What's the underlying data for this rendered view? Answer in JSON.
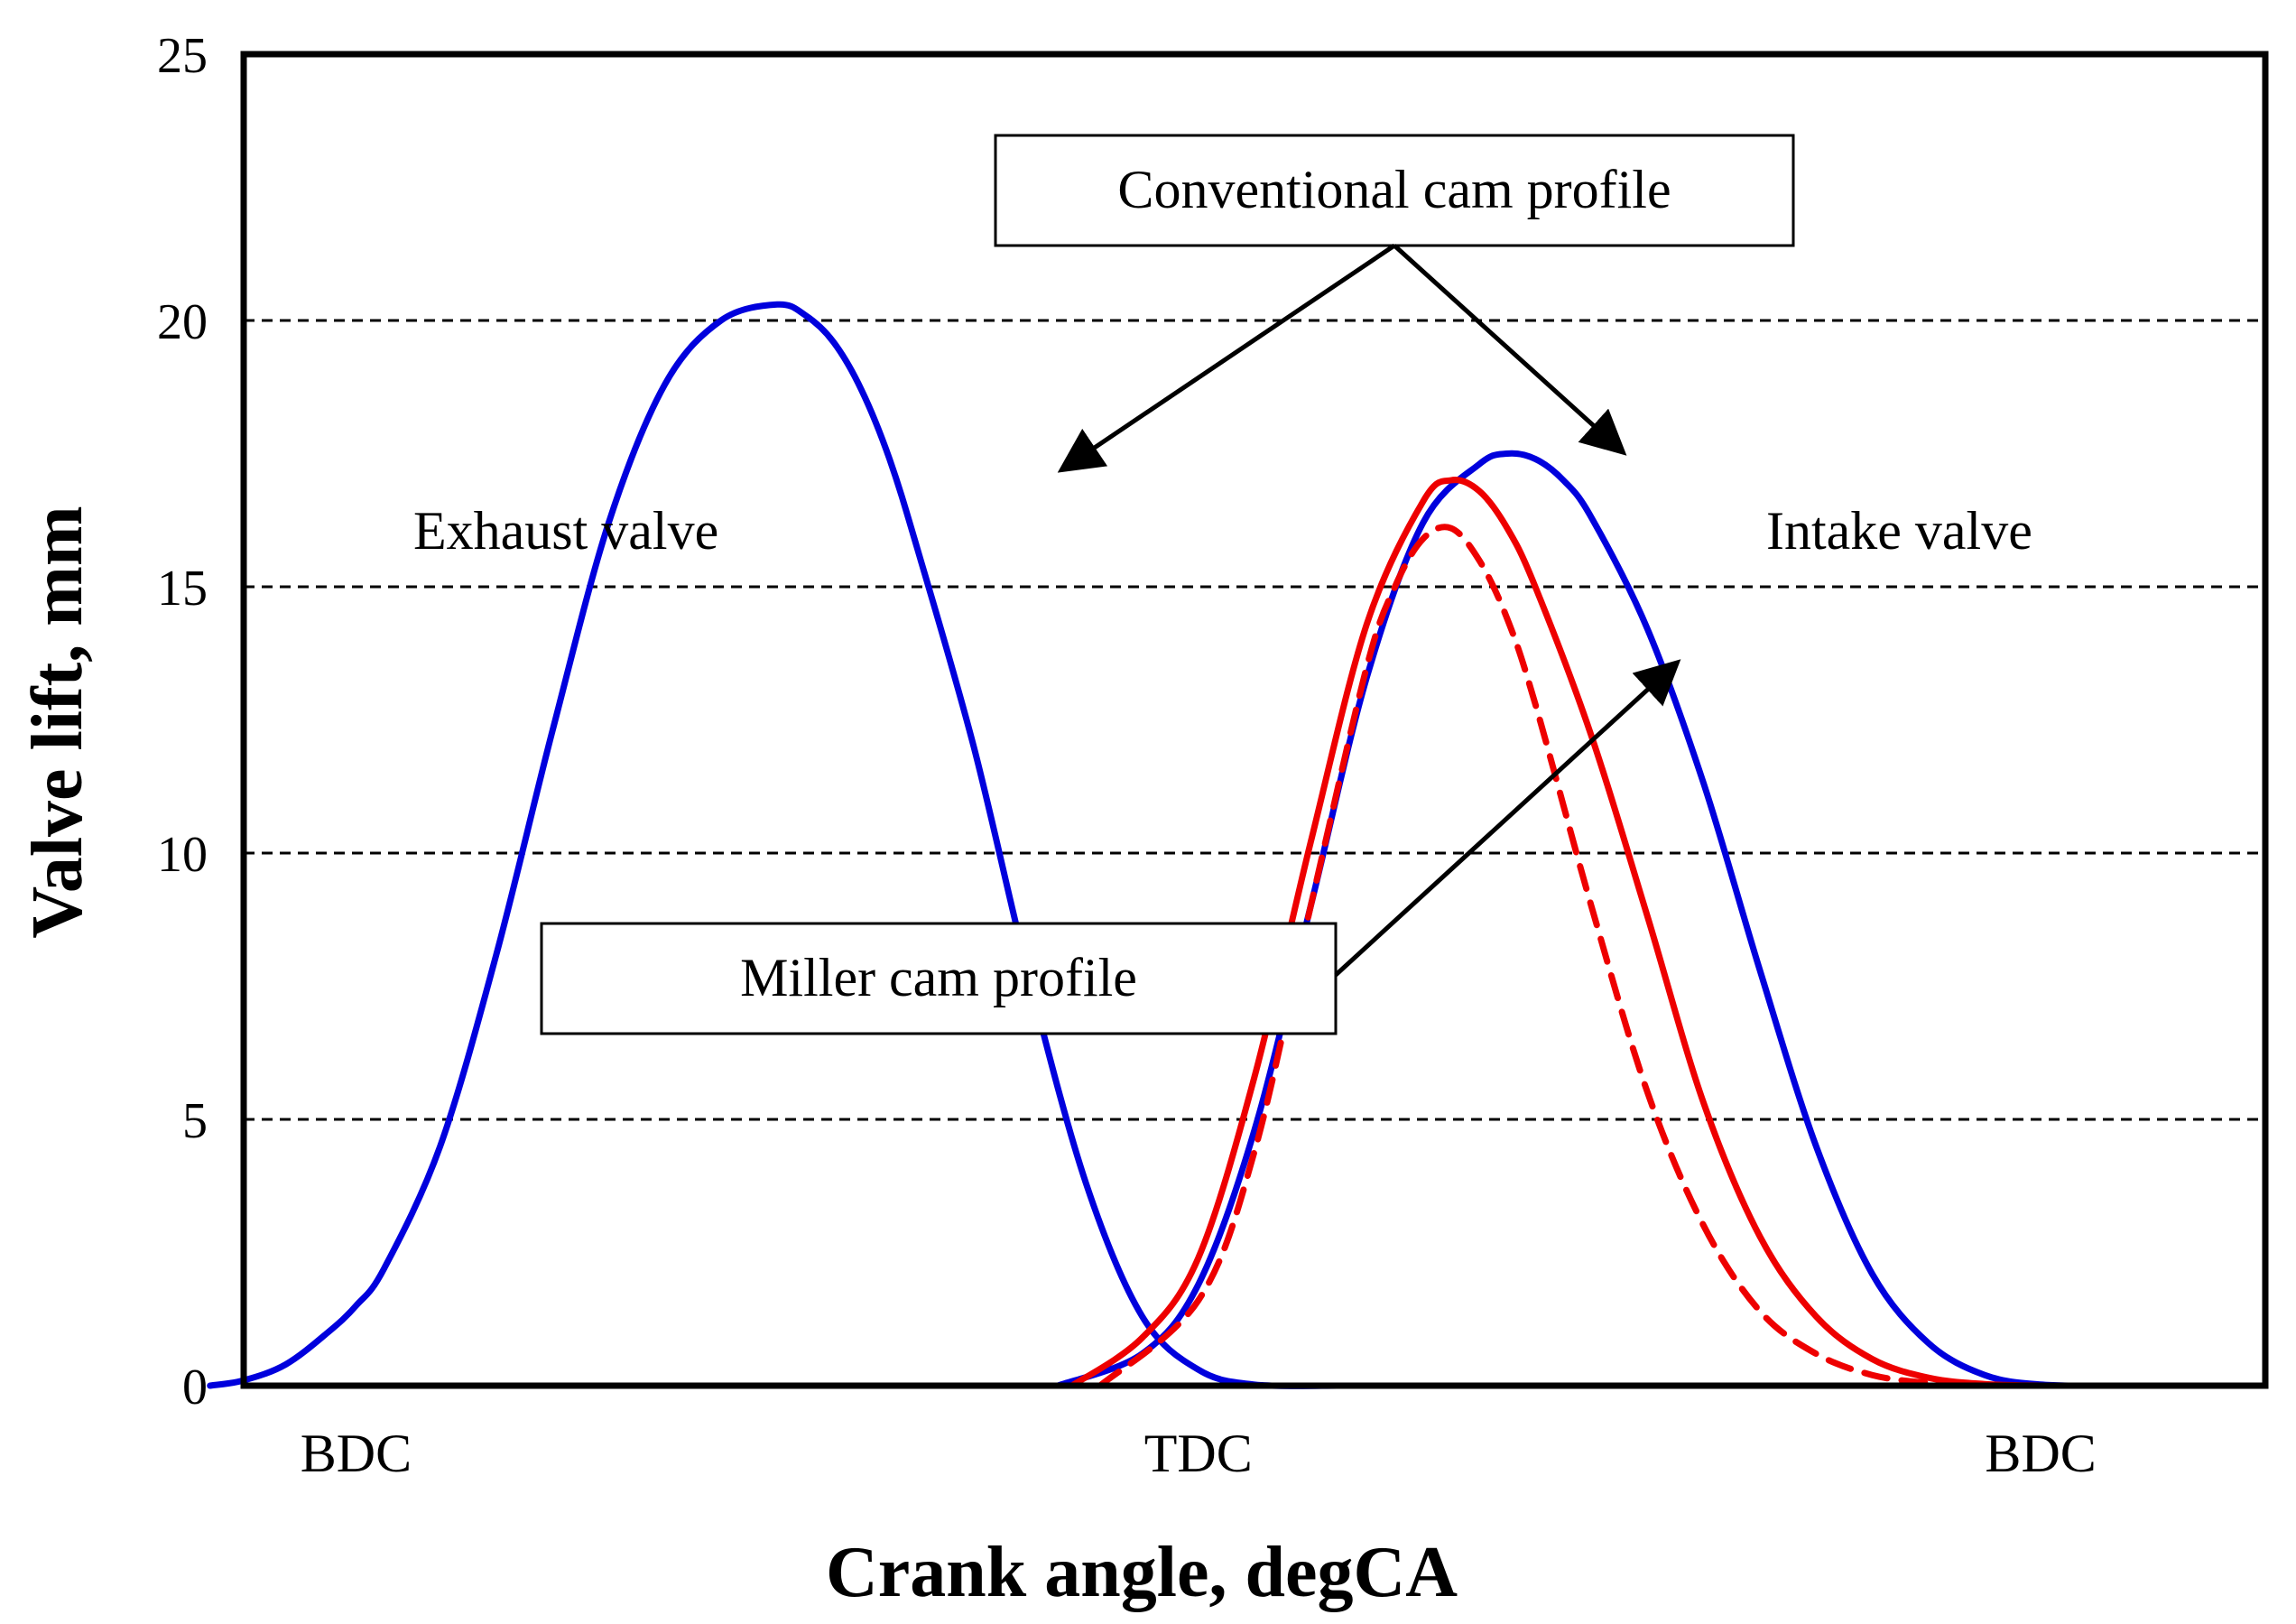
{
  "chart_data": {
    "type": "line",
    "xlabel": "Crank angle, degCA",
    "ylabel": "Valve lift, mm",
    "ylim": [
      0,
      25
    ],
    "xlim": [
      -40,
      680
    ],
    "yticks": [
      0,
      5,
      10,
      15,
      20,
      25
    ],
    "grid": {
      "horizontal_dashed_at": [
        5,
        10,
        15,
        20
      ]
    },
    "x_category_labels": [
      {
        "label": "BDC",
        "x": 0
      },
      {
        "label": "TDC",
        "x": 300
      },
      {
        "label": "BDC",
        "x": 600
      }
    ],
    "series": [
      {
        "group": "Exhaust valve",
        "color": "#0000dd",
        "style": "solid",
        "x": [
          -52,
          -40,
          -25,
          -10,
          0,
          10,
          30,
          50,
          70,
          90,
          110,
          130,
          150,
          160,
          170,
          180,
          190,
          200,
          220,
          240,
          260,
          280,
          300,
          320,
          350
        ],
        "y": [
          0,
          0.1,
          0.4,
          1,
          1.5,
          2.2,
          4.5,
          8.1,
          12.3,
          16.2,
          18.8,
          20.0,
          20.3,
          20.1,
          19.6,
          18.7,
          17.4,
          15.7,
          12.0,
          7.6,
          3.8,
          1.3,
          0.3,
          0.02,
          0
        ]
      },
      {
        "group": "Intake valve",
        "color": "#0000dd",
        "style": "solid",
        "x": [
          250,
          280,
          300,
          320,
          340,
          360,
          380,
          400,
          410,
          420,
          430,
          440,
          460,
          480,
          500,
          520,
          540,
          560,
          580,
          600,
          625
        ],
        "y": [
          0,
          0.6,
          1.9,
          4.8,
          9.0,
          13.3,
          16.2,
          17.3,
          17.5,
          17.4,
          17.0,
          16.3,
          14.2,
          11.3,
          7.8,
          4.5,
          2.1,
          0.8,
          0.2,
          0.02,
          0
        ]
      },
      {
        "group": "Intake valve",
        "color": "#ee0000",
        "style": "solid",
        "x": [
          255,
          280,
          300,
          320,
          340,
          360,
          380,
          390,
          400,
          410,
          420,
          440,
          460,
          480,
          500,
          520,
          540,
          560,
          580,
          600
        ],
        "y": [
          0,
          0.9,
          2.4,
          5.8,
          10.2,
          14.3,
          16.6,
          17.0,
          16.8,
          16.1,
          15.0,
          12.2,
          8.8,
          5.3,
          2.8,
          1.3,
          0.5,
          0.15,
          0.03,
          0
        ]
      },
      {
        "group": "Intake valve",
        "color": "#ee0000",
        "style": "dashed",
        "x": [
          265,
          300,
          320,
          340,
          360,
          370,
          380,
          390,
          400,
          410,
          420,
          440,
          460,
          480,
          500,
          520,
          540,
          560,
          580
        ],
        "y": [
          0,
          1.6,
          4.4,
          9.0,
          13.5,
          15.0,
          15.9,
          16.1,
          15.5,
          14.4,
          12.8,
          9.0,
          5.5,
          3.0,
          1.4,
          0.6,
          0.2,
          0.05,
          0
        ]
      }
    ],
    "annotations": [
      {
        "text": "Conventional cam profile",
        "boxed": true
      },
      {
        "text": "Miller cam profile",
        "boxed": true
      },
      {
        "text": "Exhaust valve",
        "boxed": false
      },
      {
        "text": "Intake valve",
        "boxed": false
      }
    ]
  }
}
